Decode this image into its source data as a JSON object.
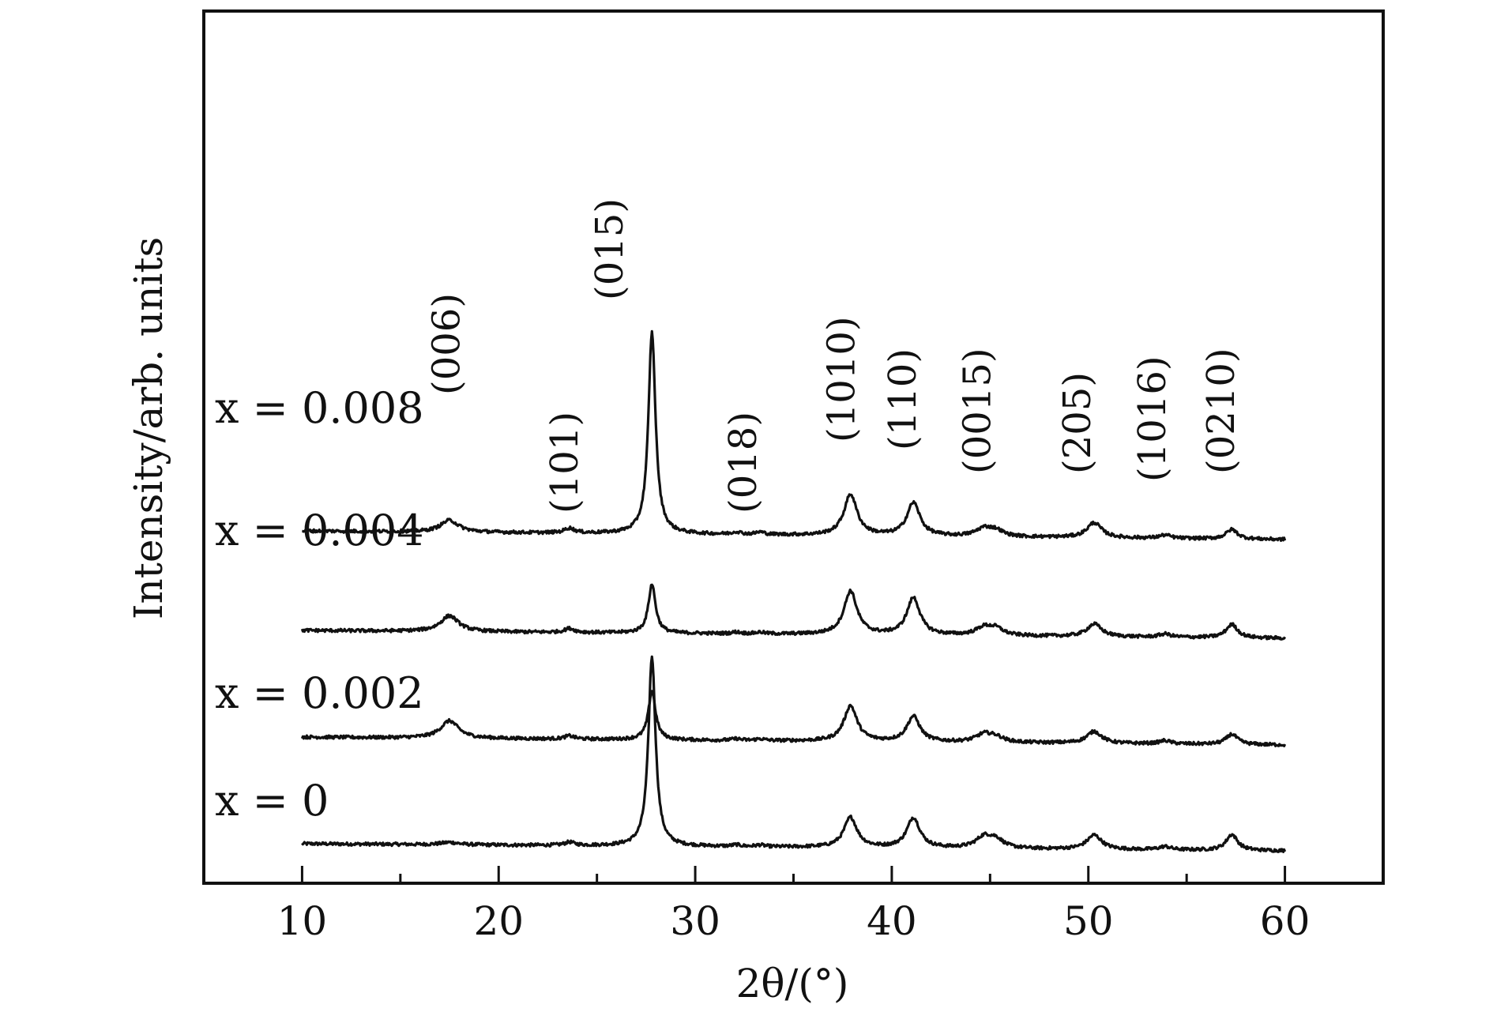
{
  "chart_data": {
    "type": "line",
    "xlabel": "2θ/(°)",
    "ylabel": "Intensity/arb. units",
    "xlim": [
      5,
      65
    ],
    "x_ticks": [
      10,
      20,
      30,
      40,
      50,
      60
    ],
    "x_minor_ticks": [
      15,
      25,
      35,
      45,
      55
    ],
    "y_axis_ticks_shown": false,
    "grid": false,
    "legend": "none",
    "line_color": "#111111",
    "x_range": [
      10,
      60
    ],
    "peaks": [
      {
        "x": 17.5,
        "width": 0.55
      },
      {
        "x": 23.6,
        "width": 0.3
      },
      {
        "x": 27.8,
        "width": 0.22
      },
      {
        "x": 32.1,
        "width": 0.25
      },
      {
        "x": 33.3,
        "width": 0.25
      },
      {
        "x": 37.9,
        "width": 0.4
      },
      {
        "x": 41.1,
        "width": 0.4
      },
      {
        "x": 44.7,
        "width": 0.5
      },
      {
        "x": 45.3,
        "width": 0.45
      },
      {
        "x": 50.3,
        "width": 0.45
      },
      {
        "x": 53.9,
        "width": 0.35
      },
      {
        "x": 57.3,
        "width": 0.35
      }
    ],
    "series": [
      {
        "name": "x = 0",
        "offset": 0,
        "baseline_start": 12,
        "baseline_end": 3,
        "peak_heights": [
          3,
          4,
          240,
          2,
          2,
          38,
          38,
          14,
          10,
          18,
          4,
          20
        ]
      },
      {
        "name": "x = 0.002",
        "offset": 133,
        "baseline_start": 14,
        "baseline_end": 4,
        "peak_heights": [
          22,
          4,
          62,
          2,
          2,
          45,
          32,
          10,
          6,
          15,
          4,
          13
        ]
      },
      {
        "name": "x = 0.004",
        "offset": 268,
        "baseline_start": 14,
        "baseline_end": 4,
        "peak_heights": [
          20,
          5,
          62,
          2,
          2,
          55,
          47,
          10,
          8,
          16,
          4,
          17
        ]
      },
      {
        "name": "x = 0.008",
        "offset": 393,
        "baseline_start": 15,
        "baseline_end": 4,
        "peak_heights": [
          15,
          6,
          255,
          3,
          3,
          52,
          42,
          10,
          7,
          19,
          4,
          12
        ]
      }
    ],
    "annotations": [
      {
        "text": "(006)",
        "x": 18.0,
        "level": 580
      },
      {
        "text": "(101)",
        "x": 24.0,
        "level": 430
      },
      {
        "text": "(015)",
        "x": 26.3,
        "level": 700
      },
      {
        "text": "(018)",
        "x": 33.1,
        "level": 430
      },
      {
        "text": "(1010)",
        "x": 38.1,
        "level": 520
      },
      {
        "text": "(110)",
        "x": 41.2,
        "level": 510
      },
      {
        "text": "(0015)",
        "x": 45.0,
        "level": 480
      },
      {
        "text": "(205)",
        "x": 50.1,
        "level": 480
      },
      {
        "text": "(1016)",
        "x": 53.9,
        "level": 470
      },
      {
        "text": "(0210)",
        "x": 57.4,
        "level": 480
      }
    ]
  }
}
